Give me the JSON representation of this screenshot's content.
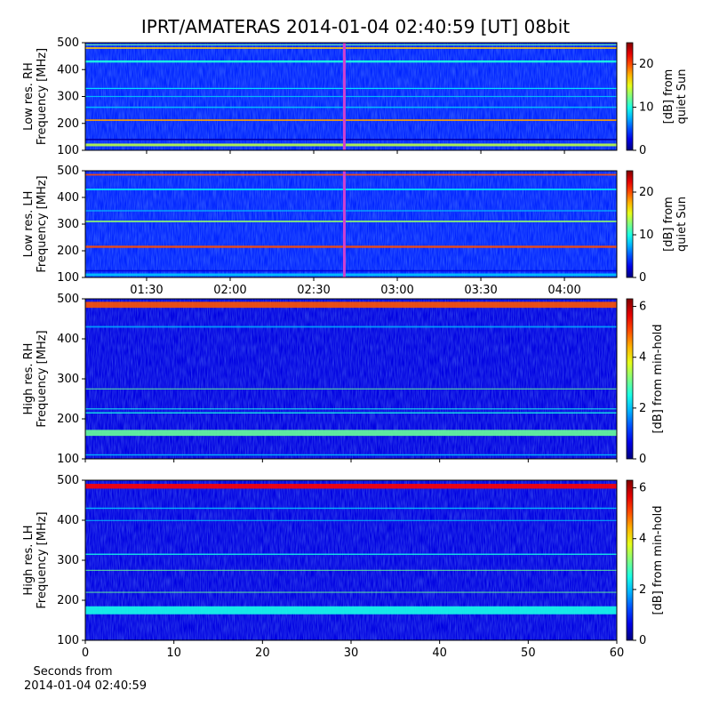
{
  "title": "IPRT/AMATERAS 2014-01-04 02:40:59 [UT]   08bit",
  "chart_data": [
    {
      "type": "heatmap",
      "ylabel": [
        "Low res. RH",
        "Frequency [MHz]"
      ],
      "ylim": [
        100,
        500
      ],
      "yticks": [
        100,
        200,
        300,
        400,
        500
      ],
      "xlim": [
        68,
        258.8
      ],
      "marker_x": 160.98,
      "marker_color": "#d040d0",
      "clabel": [
        "[dB] from",
        "quiet Sun"
      ],
      "clim": [
        0,
        25
      ],
      "cticks": [
        0,
        10,
        20
      ],
      "background": 4,
      "bands": [
        {
          "freq": 120,
          "width": 10,
          "value": 14
        },
        {
          "freq": 140,
          "width": 6,
          "value": 1
        },
        {
          "freq": 212,
          "width": 6,
          "value": 18
        },
        {
          "freq": 260,
          "width": 5,
          "value": 8
        },
        {
          "freq": 300,
          "width": 4,
          "value": 8
        },
        {
          "freq": 330,
          "width": 4,
          "value": 9
        },
        {
          "freq": 430,
          "width": 8,
          "value": 10
        },
        {
          "freq": 480,
          "width": 6,
          "value": 17
        },
        {
          "freq": 492,
          "width": 4,
          "value": 12
        }
      ]
    },
    {
      "type": "heatmap",
      "ylabel": [
        "Low res. LH",
        "Frequency [MHz]"
      ],
      "ylim": [
        100,
        500
      ],
      "yticks": [
        100,
        200,
        300,
        400,
        500
      ],
      "xlim": [
        68,
        258.8
      ],
      "marker_x": 160.98,
      "marker_color": "#d040d0",
      "xticks": [
        {
          "value": 90,
          "label": "01:30"
        },
        {
          "value": 120,
          "label": "02:00"
        },
        {
          "value": 150,
          "label": "02:30"
        },
        {
          "value": 180,
          "label": "03:00"
        },
        {
          "value": 210,
          "label": "03:30"
        },
        {
          "value": 240,
          "label": "04:00"
        }
      ],
      "clabel": [
        "[dB] from",
        "quiet Sun"
      ],
      "clim": [
        0,
        25
      ],
      "cticks": [
        0,
        10,
        20
      ],
      "background": 4,
      "bands": [
        {
          "freq": 110,
          "width": 10,
          "value": 8
        },
        {
          "freq": 125,
          "width": 5,
          "value": 2
        },
        {
          "freq": 215,
          "width": 8,
          "value": 20
        },
        {
          "freq": 310,
          "width": 6,
          "value": 13
        },
        {
          "freq": 350,
          "width": 4,
          "value": 8
        },
        {
          "freq": 430,
          "width": 6,
          "value": 9
        },
        {
          "freq": 485,
          "width": 6,
          "value": 20
        }
      ]
    },
    {
      "type": "heatmap",
      "ylabel": [
        "High res. RH",
        "Frequency [MHz]"
      ],
      "ylim": [
        100,
        500
      ],
      "yticks": [
        100,
        200,
        300,
        400,
        500
      ],
      "xlim": [
        0,
        60
      ],
      "xticks": [
        0,
        10,
        20,
        30,
        40,
        50,
        60
      ],
      "tick_labels": false,
      "clabel": [
        "[dB] from min-hold"
      ],
      "clim": [
        0,
        6.3
      ],
      "cticks": [
        0,
        2,
        4,
        6
      ],
      "background": 0.6,
      "bands": [
        {
          "freq": 485,
          "width": 15,
          "value": 5
        },
        {
          "freq": 430,
          "width": 4,
          "value": 1.8
        },
        {
          "freq": 275,
          "width": 2,
          "value": 3
        },
        {
          "freq": 225,
          "width": 2,
          "value": 2.5
        },
        {
          "freq": 215,
          "width": 3,
          "value": 2.5
        },
        {
          "freq": 165,
          "width": 15,
          "value": 3
        },
        {
          "freq": 110,
          "width": 3,
          "value": 2
        }
      ]
    },
    {
      "type": "heatmap",
      "ylabel": [
        "High res. LH",
        "Frequency [MHz]"
      ],
      "ylim": [
        100,
        500
      ],
      "yticks": [
        100,
        200,
        300,
        400,
        500
      ],
      "xlim": [
        0,
        60
      ],
      "xticks": [
        0,
        10,
        20,
        30,
        40,
        50,
        60
      ],
      "tick_labels": true,
      "xlabel": [
        "Seconds from",
        "2014-01-04 02:40:59"
      ],
      "clabel": [
        "[dB] from min-hold"
      ],
      "clim": [
        0,
        6.3
      ],
      "cticks": [
        0,
        2,
        4,
        6
      ],
      "background": 0.6,
      "bands": [
        {
          "freq": 485,
          "width": 12,
          "value": 5.5
        },
        {
          "freq": 430,
          "width": 3,
          "value": 2
        },
        {
          "freq": 400,
          "width": 1,
          "value": 2
        },
        {
          "freq": 315,
          "width": 3,
          "value": 2.5
        },
        {
          "freq": 275,
          "width": 2,
          "value": 3
        },
        {
          "freq": 220,
          "width": 2,
          "value": 3
        },
        {
          "freq": 175,
          "width": 20,
          "value": 2.5
        }
      ]
    }
  ]
}
